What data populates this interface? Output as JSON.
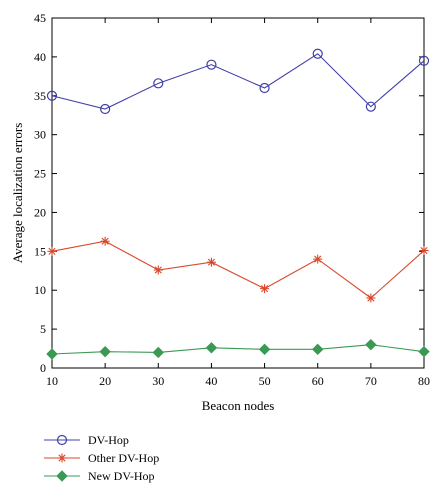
{
  "chart_data": {
    "type": "line",
    "title": "",
    "xlabel": "Beacon nodes",
    "ylabel": "Average localization errors",
    "x": [
      10,
      20,
      30,
      40,
      50,
      60,
      70,
      80
    ],
    "xlim": [
      10,
      80
    ],
    "ylim": [
      0,
      45
    ],
    "xticks": [
      10,
      20,
      30,
      40,
      50,
      60,
      70,
      80
    ],
    "yticks": [
      0,
      5,
      10,
      15,
      20,
      25,
      30,
      35,
      40,
      45
    ],
    "grid": false,
    "legend_position": "below",
    "series": [
      {
        "name": "DV-Hop",
        "color": "#4040a8",
        "marker": "circle",
        "values": [
          35.0,
          33.3,
          36.6,
          39.0,
          36.0,
          40.4,
          33.6,
          39.5
        ]
      },
      {
        "name": "Other DV-Hop",
        "color": "#d9482a",
        "marker": "asterisk",
        "values": [
          15.0,
          16.3,
          12.6,
          13.6,
          10.2,
          14.0,
          9.0,
          15.1
        ]
      },
      {
        "name": "New DV-Hop",
        "color": "#3a9a54",
        "marker": "diamond",
        "values": [
          1.8,
          2.1,
          2.0,
          2.6,
          2.4,
          2.4,
          3.0,
          2.1
        ]
      }
    ]
  }
}
